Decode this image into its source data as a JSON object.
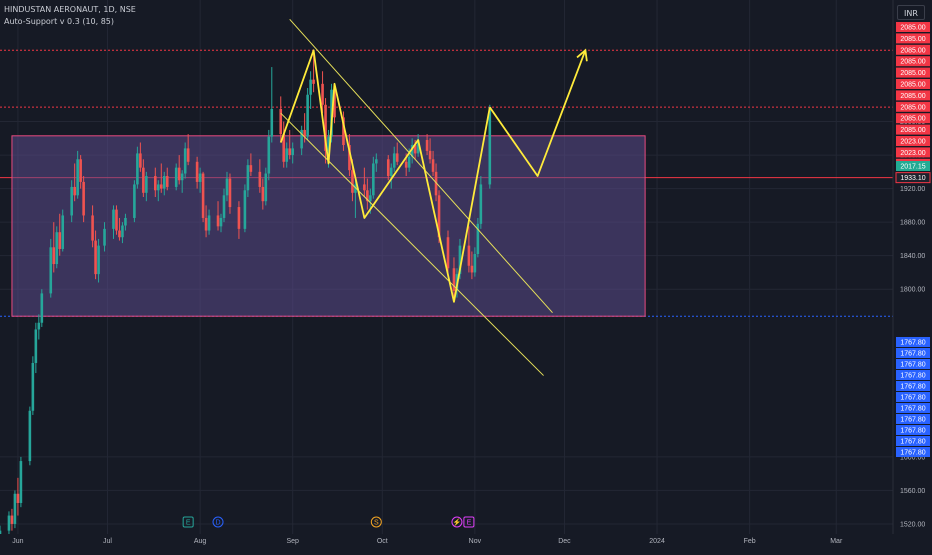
{
  "header": {
    "symbol_line": "HINDUSTAN AERONAUT, 1D, NSE",
    "indicator_line": "Auto-Support v 0.3 (10, 85)"
  },
  "currency_button": "INR",
  "price_axis": {
    "ticks": [
      "2000.00",
      "1960.00",
      "1920.00",
      "1880.00",
      "1840.00",
      "1800.00",
      "1600.00",
      "1560.00",
      "1520.00"
    ]
  },
  "time_axis": {
    "ticks": [
      "Jun",
      "Jul",
      "Aug",
      "Sep",
      "Oct",
      "Nov",
      "Dec",
      "2024",
      "Feb",
      "Mar"
    ]
  },
  "resistance_labels": [
    "2085.00",
    "2085.00",
    "2085.00",
    "2085.00",
    "2085.00",
    "2085.00",
    "2085.00",
    "2085.00",
    "2085.00",
    "2085.00",
    "2023.00",
    "2023.00",
    "2023.00"
  ],
  "current_price_label": "2017.15",
  "midline_label": "1933.10",
  "support_labels": [
    "1767.80",
    "1767.80",
    "1767.80",
    "1767.80",
    "1767.80",
    "1767.80",
    "1767.80",
    "1767.80",
    "1767.80",
    "1767.80",
    "1767.80"
  ],
  "event_markers": [
    "E",
    "D",
    "S",
    "⚡",
    "E"
  ],
  "colors": {
    "background": "#161a25",
    "up": "#26a69a",
    "down": "#ef5350",
    "resistance": "#f23645",
    "support": "#2962ff",
    "zone": "#5b4a8b",
    "projection": "#ffeb3b",
    "channel": "#e6e05a"
  },
  "chart_data": {
    "type": "candlestick",
    "symbol": "HINDUSTAN AERONAUT",
    "interval": "1D",
    "exchange": "NSE",
    "currency": "INR",
    "x_range": [
      "2023-05-26",
      "2024-03-20"
    ],
    "y_range": [
      1508,
      2145
    ],
    "candles": [
      {
        "date": "2023-05-26",
        "open": 1508,
        "high": 1518,
        "low": 1505,
        "close": 1512
      },
      {
        "date": "2023-05-29",
        "open": 1512,
        "high": 1535,
        "low": 1508,
        "close": 1530
      },
      {
        "date": "2023-05-30",
        "open": 1530,
        "high": 1538,
        "low": 1512,
        "close": 1520
      },
      {
        "date": "2023-05-31",
        "open": 1520,
        "high": 1560,
        "low": 1515,
        "close": 1556
      },
      {
        "date": "2023-06-01",
        "open": 1556,
        "high": 1575,
        "low": 1530,
        "close": 1545
      },
      {
        "date": "2023-06-02",
        "open": 1545,
        "high": 1600,
        "low": 1540,
        "close": 1595
      },
      {
        "date": "2023-06-05",
        "open": 1595,
        "high": 1660,
        "low": 1590,
        "close": 1655
      },
      {
        "date": "2023-06-06",
        "open": 1655,
        "high": 1720,
        "low": 1650,
        "close": 1712
      },
      {
        "date": "2023-06-07",
        "open": 1712,
        "high": 1760,
        "low": 1700,
        "close": 1752
      },
      {
        "date": "2023-06-08",
        "open": 1752,
        "high": 1770,
        "low": 1740,
        "close": 1760
      },
      {
        "date": "2023-06-09",
        "open": 1760,
        "high": 1800,
        "low": 1755,
        "close": 1795
      },
      {
        "date": "2023-06-12",
        "open": 1795,
        "high": 1860,
        "low": 1790,
        "close": 1850
      },
      {
        "date": "2023-06-13",
        "open": 1850,
        "high": 1880,
        "low": 1820,
        "close": 1830
      },
      {
        "date": "2023-06-14",
        "open": 1830,
        "high": 1875,
        "low": 1825,
        "close": 1868
      },
      {
        "date": "2023-06-15",
        "open": 1868,
        "high": 1890,
        "low": 1840,
        "close": 1848
      },
      {
        "date": "2023-06-16",
        "open": 1848,
        "high": 1895,
        "low": 1845,
        "close": 1888
      },
      {
        "date": "2023-06-19",
        "open": 1888,
        "high": 1930,
        "low": 1880,
        "close": 1922
      },
      {
        "date": "2023-06-20",
        "open": 1922,
        "high": 1950,
        "low": 1905,
        "close": 1912
      },
      {
        "date": "2023-06-21",
        "open": 1912,
        "high": 1965,
        "low": 1908,
        "close": 1955
      },
      {
        "date": "2023-06-22",
        "open": 1955,
        "high": 1960,
        "low": 1920,
        "close": 1928
      },
      {
        "date": "2023-06-23",
        "open": 1928,
        "high": 1935,
        "low": 1880,
        "close": 1888
      },
      {
        "date": "2023-06-26",
        "open": 1888,
        "high": 1900,
        "low": 1850,
        "close": 1858
      },
      {
        "date": "2023-06-27",
        "open": 1858,
        "high": 1870,
        "low": 1812,
        "close": 1818
      },
      {
        "date": "2023-06-28",
        "open": 1818,
        "high": 1860,
        "low": 1808,
        "close": 1852
      },
      {
        "date": "2023-06-30",
        "open": 1852,
        "high": 1880,
        "low": 1845,
        "close": 1872
      },
      {
        "date": "2023-07-03",
        "open": 1872,
        "high": 1900,
        "low": 1860,
        "close": 1895
      },
      {
        "date": "2023-07-04",
        "open": 1895,
        "high": 1900,
        "low": 1865,
        "close": 1870
      },
      {
        "date": "2023-07-05",
        "open": 1870,
        "high": 1885,
        "low": 1858,
        "close": 1862
      },
      {
        "date": "2023-07-06",
        "open": 1862,
        "high": 1880,
        "low": 1855,
        "close": 1876
      },
      {
        "date": "2023-07-07",
        "open": 1876,
        "high": 1890,
        "low": 1870,
        "close": 1885
      },
      {
        "date": "2023-07-10",
        "open": 1885,
        "high": 1930,
        "low": 1880,
        "close": 1925
      },
      {
        "date": "2023-07-11",
        "open": 1925,
        "high": 1970,
        "low": 1920,
        "close": 1962
      },
      {
        "date": "2023-07-12",
        "open": 1962,
        "high": 1975,
        "low": 1940,
        "close": 1945
      },
      {
        "date": "2023-07-13",
        "open": 1945,
        "high": 1955,
        "low": 1910,
        "close": 1915
      },
      {
        "date": "2023-07-14",
        "open": 1915,
        "high": 1940,
        "low": 1905,
        "close": 1935
      },
      {
        "date": "2023-07-17",
        "open": 1935,
        "high": 1945,
        "low": 1910,
        "close": 1918
      },
      {
        "date": "2023-07-18",
        "open": 1918,
        "high": 1930,
        "low": 1905,
        "close": 1925
      },
      {
        "date": "2023-07-19",
        "open": 1925,
        "high": 1950,
        "low": 1915,
        "close": 1920
      },
      {
        "date": "2023-07-20",
        "open": 1920,
        "high": 1940,
        "low": 1912,
        "close": 1935
      },
      {
        "date": "2023-07-21",
        "open": 1935,
        "high": 1945,
        "low": 1918,
        "close": 1922
      },
      {
        "date": "2023-07-24",
        "open": 1922,
        "high": 1950,
        "low": 1918,
        "close": 1945
      },
      {
        "date": "2023-07-25",
        "open": 1945,
        "high": 1960,
        "low": 1925,
        "close": 1930
      },
      {
        "date": "2023-07-26",
        "open": 1930,
        "high": 1942,
        "low": 1915,
        "close": 1938
      },
      {
        "date": "2023-07-27",
        "open": 1938,
        "high": 1975,
        "low": 1932,
        "close": 1968
      },
      {
        "date": "2023-07-28",
        "open": 1968,
        "high": 1985,
        "low": 1948,
        "close": 1952
      },
      {
        "date": "2023-07-31",
        "open": 1952,
        "high": 1958,
        "low": 1920,
        "close": 1928
      },
      {
        "date": "2023-08-01",
        "open": 1928,
        "high": 1945,
        "low": 1915,
        "close": 1938
      },
      {
        "date": "2023-08-02",
        "open": 1938,
        "high": 1940,
        "low": 1880,
        "close": 1885
      },
      {
        "date": "2023-08-03",
        "open": 1885,
        "high": 1900,
        "low": 1862,
        "close": 1870
      },
      {
        "date": "2023-08-04",
        "open": 1870,
        "high": 1895,
        "low": 1865,
        "close": 1888
      },
      {
        "date": "2023-08-07",
        "open": 1888,
        "high": 1905,
        "low": 1870,
        "close": 1875
      },
      {
        "date": "2023-08-08",
        "open": 1875,
        "high": 1890,
        "low": 1868,
        "close": 1885
      },
      {
        "date": "2023-08-09",
        "open": 1885,
        "high": 1920,
        "low": 1880,
        "close": 1912
      },
      {
        "date": "2023-08-10",
        "open": 1912,
        "high": 1940,
        "low": 1905,
        "close": 1932
      },
      {
        "date": "2023-08-11",
        "open": 1932,
        "high": 1938,
        "low": 1890,
        "close": 1898
      },
      {
        "date": "2023-08-14",
        "open": 1898,
        "high": 1905,
        "low": 1860,
        "close": 1872
      },
      {
        "date": "2023-08-16",
        "open": 1872,
        "high": 1925,
        "low": 1868,
        "close": 1918
      },
      {
        "date": "2023-08-17",
        "open": 1918,
        "high": 1955,
        "low": 1910,
        "close": 1948
      },
      {
        "date": "2023-08-18",
        "open": 1948,
        "high": 1962,
        "low": 1935,
        "close": 1940
      },
      {
        "date": "2023-08-21",
        "open": 1940,
        "high": 1955,
        "low": 1915,
        "close": 1922
      },
      {
        "date": "2023-08-22",
        "open": 1922,
        "high": 1932,
        "low": 1895,
        "close": 1905
      },
      {
        "date": "2023-08-23",
        "open": 1905,
        "high": 1945,
        "low": 1900,
        "close": 1938
      },
      {
        "date": "2023-08-24",
        "open": 1938,
        "high": 1990,
        "low": 1930,
        "close": 1982
      },
      {
        "date": "2023-08-25",
        "open": 1982,
        "high": 2065,
        "low": 1975,
        "close": 2015
      },
      {
        "date": "2023-08-28",
        "open": 2015,
        "high": 2030,
        "low": 1975,
        "close": 1985
      },
      {
        "date": "2023-08-29",
        "open": 1985,
        "high": 2000,
        "low": 1945,
        "close": 1952
      },
      {
        "date": "2023-08-30",
        "open": 1952,
        "high": 1975,
        "low": 1945,
        "close": 1968
      },
      {
        "date": "2023-08-31",
        "open": 1968,
        "high": 1990,
        "low": 1955,
        "close": 1960
      },
      {
        "date": "2023-09-01",
        "open": 1960,
        "high": 1975,
        "low": 1950,
        "close": 1968
      },
      {
        "date": "2023-09-04",
        "open": 1968,
        "high": 1995,
        "low": 1960,
        "close": 1990
      },
      {
        "date": "2023-09-05",
        "open": 1990,
        "high": 2010,
        "low": 1975,
        "close": 1982
      },
      {
        "date": "2023-09-06",
        "open": 1982,
        "high": 2040,
        "low": 1978,
        "close": 2032
      },
      {
        "date": "2023-09-07",
        "open": 2032,
        "high": 2060,
        "low": 2015,
        "close": 2050
      },
      {
        "date": "2023-09-08",
        "open": 2050,
        "high": 2085,
        "low": 2035,
        "close": 2045
      },
      {
        "date": "2023-09-11",
        "open": 2045,
        "high": 2060,
        "low": 2010,
        "close": 2020
      },
      {
        "date": "2023-09-12",
        "open": 2020,
        "high": 2028,
        "low": 1950,
        "close": 1965
      },
      {
        "date": "2023-09-13",
        "open": 1965,
        "high": 1990,
        "low": 1945,
        "close": 1982
      },
      {
        "date": "2023-09-14",
        "open": 1982,
        "high": 2045,
        "low": 1975,
        "close": 2038
      },
      {
        "date": "2023-09-15",
        "open": 2038,
        "high": 2045,
        "low": 1998,
        "close": 2005
      },
      {
        "date": "2023-09-18",
        "open": 2005,
        "high": 2012,
        "low": 1965,
        "close": 1972
      },
      {
        "date": "2023-09-20",
        "open": 1972,
        "high": 1985,
        "low": 1935,
        "close": 1942
      },
      {
        "date": "2023-09-21",
        "open": 1942,
        "high": 1955,
        "low": 1905,
        "close": 1915
      },
      {
        "date": "2023-09-22",
        "open": 1915,
        "high": 1935,
        "low": 1885,
        "close": 1925
      },
      {
        "date": "2023-09-25",
        "open": 1925,
        "high": 1945,
        "low": 1910,
        "close": 1918
      },
      {
        "date": "2023-09-26",
        "open": 1918,
        "high": 1932,
        "low": 1895,
        "close": 1905
      },
      {
        "date": "2023-09-27",
        "open": 1905,
        "high": 1920,
        "low": 1890,
        "close": 1912
      },
      {
        "date": "2023-09-28",
        "open": 1912,
        "high": 1958,
        "low": 1908,
        "close": 1950
      },
      {
        "date": "2023-09-29",
        "open": 1950,
        "high": 1962,
        "low": 1940,
        "close": 1955
      },
      {
        "date": "2023-10-03",
        "open": 1955,
        "high": 1960,
        "low": 1930,
        "close": 1935
      },
      {
        "date": "2023-10-04",
        "open": 1935,
        "high": 1950,
        "low": 1920,
        "close": 1945
      },
      {
        "date": "2023-10-05",
        "open": 1945,
        "high": 1970,
        "low": 1940,
        "close": 1962
      },
      {
        "date": "2023-10-06",
        "open": 1962,
        "high": 1975,
        "low": 1948,
        "close": 1952
      },
      {
        "date": "2023-10-09",
        "open": 1952,
        "high": 1962,
        "low": 1935,
        "close": 1945
      },
      {
        "date": "2023-10-10",
        "open": 1945,
        "high": 1968,
        "low": 1940,
        "close": 1958
      },
      {
        "date": "2023-10-11",
        "open": 1958,
        "high": 1980,
        "low": 1950,
        "close": 1972
      },
      {
        "date": "2023-10-12",
        "open": 1972,
        "high": 1978,
        "low": 1955,
        "close": 1962
      },
      {
        "date": "2023-10-13",
        "open": 1962,
        "high": 1985,
        "low": 1958,
        "close": 1978
      },
      {
        "date": "2023-10-16",
        "open": 1978,
        "high": 1985,
        "low": 1960,
        "close": 1965
      },
      {
        "date": "2023-10-17",
        "open": 1965,
        "high": 1980,
        "low": 1950,
        "close": 1955
      },
      {
        "date": "2023-10-18",
        "open": 1955,
        "high": 1965,
        "low": 1935,
        "close": 1940
      },
      {
        "date": "2023-10-19",
        "open": 1940,
        "high": 1950,
        "low": 1905,
        "close": 1912
      },
      {
        "date": "2023-10-20",
        "open": 1912,
        "high": 1918,
        "low": 1855,
        "close": 1862
      },
      {
        "date": "2023-10-23",
        "open": 1862,
        "high": 1870,
        "low": 1818,
        "close": 1825
      },
      {
        "date": "2023-10-25",
        "open": 1825,
        "high": 1838,
        "low": 1785,
        "close": 1798
      },
      {
        "date": "2023-10-26",
        "open": 1798,
        "high": 1825,
        "low": 1790,
        "close": 1818
      },
      {
        "date": "2023-10-27",
        "open": 1818,
        "high": 1860,
        "low": 1812,
        "close": 1852
      },
      {
        "date": "2023-10-30",
        "open": 1852,
        "high": 1875,
        "low": 1820,
        "close": 1828
      },
      {
        "date": "2023-10-31",
        "open": 1828,
        "high": 1845,
        "low": 1812,
        "close": 1820
      },
      {
        "date": "2023-11-01",
        "open": 1820,
        "high": 1850,
        "low": 1815,
        "close": 1842
      },
      {
        "date": "2023-11-02",
        "open": 1842,
        "high": 1885,
        "low": 1838,
        "close": 1878
      },
      {
        "date": "2023-11-03",
        "open": 1878,
        "high": 1935,
        "low": 1872,
        "close": 1925
      },
      {
        "date": "2023-11-06",
        "open": 1925,
        "high": 2020,
        "low": 1920,
        "close": 2017.15
      }
    ],
    "zone": {
      "x_start": "2023-05-30",
      "x_end": "2023-12-28",
      "y_low": 1767.8,
      "y_high": 1983
    },
    "horizontal_levels": [
      {
        "price": 2085.0,
        "style": "dotted",
        "color": "#f23645"
      },
      {
        "price": 2017.15,
        "style": "dotted",
        "color": "#f23645"
      },
      {
        "price": 1933.1,
        "style": "solid",
        "color": "#f23645"
      },
      {
        "price": 1767.8,
        "style": "dotted",
        "color": "#2962ff"
      }
    ],
    "channel_lines": [
      [
        {
          "x": "2023-08-31",
          "y": 2122
        },
        {
          "x": "2023-11-27",
          "y": 1772
        }
      ],
      [
        {
          "x": "2023-08-28",
          "y": 2010
        },
        {
          "x": "2023-11-24",
          "y": 1697
        }
      ]
    ],
    "zigzag": [
      {
        "x": "2023-08-28",
        "y": 1975
      },
      {
        "x": "2023-09-08",
        "y": 2085
      },
      {
        "x": "2023-09-13",
        "y": 1950
      },
      {
        "x": "2023-09-15",
        "y": 2045
      },
      {
        "x": "2023-09-25",
        "y": 1885
      },
      {
        "x": "2023-10-13",
        "y": 1978
      },
      {
        "x": "2023-10-25",
        "y": 1785
      },
      {
        "x": "2023-11-06",
        "y": 2017
      }
    ],
    "projection": [
      {
        "x": "2023-11-06",
        "y": 2017
      },
      {
        "x": "2023-11-22",
        "y": 1935
      },
      {
        "x": "2023-12-08",
        "y": 2085
      }
    ]
  }
}
